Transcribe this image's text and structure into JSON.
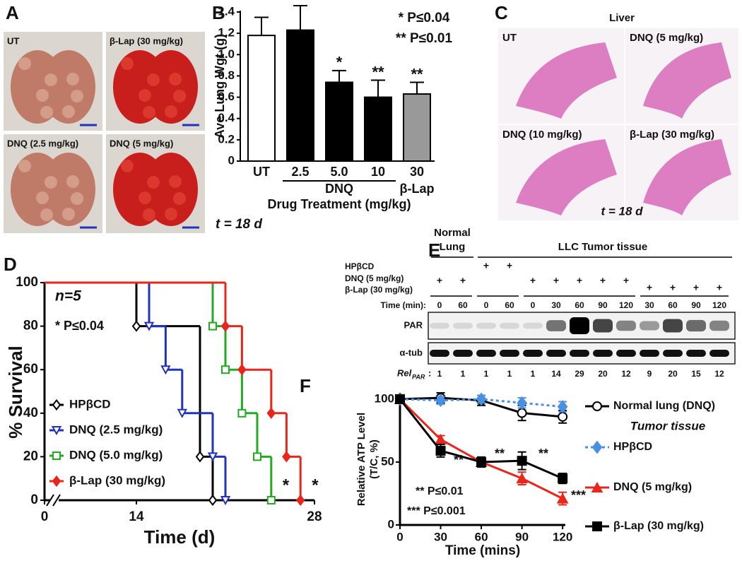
{
  "panel_labels": [
    "A",
    "B",
    "C",
    "D",
    "E",
    "F"
  ],
  "photos": {
    "labels": [
      "UT",
      "β-Lap (30 mg/kg)",
      "DNQ (2.5 mg/kg)",
      "DNQ (5 mg/kg)"
    ]
  },
  "histology": {
    "title": "Liver",
    "labels": [
      "UT",
      "DNQ (5 mg/kg)",
      "DNQ (10 mg/kg)",
      "β-Lap (30 mg/kg)"
    ],
    "note": "t = 18 d"
  },
  "chart_data": [
    {
      "type": "bar",
      "ylabel": "Ave Lung Wgt (g)",
      "xlabel": "Drug Treatment (mg/kg)",
      "categories": [
        "UT",
        "2.5",
        "5.0",
        "10",
        "30"
      ],
      "values": [
        1.18,
        1.23,
        0.74,
        0.6,
        0.63
      ],
      "errors": [
        0.17,
        0.23,
        0.11,
        0.16,
        0.11
      ],
      "colors": [
        "#ffffff",
        "#000000",
        "#000000",
        "#000000",
        "#999999"
      ],
      "stars": [
        null,
        null,
        "*",
        "**",
        "**"
      ],
      "groups": [
        {
          "name": "DNQ"
        },
        {
          "name": "β-Lap"
        }
      ],
      "ylim": [
        0,
        1.4
      ],
      "yticks": [
        0,
        0.2,
        0.4,
        0.6,
        0.8,
        {
          "value": 1,
          "label": "1.0"
        },
        1.2,
        1.4
      ],
      "annotations": [
        "* P≤0.04",
        "** P≤0.01",
        "t = 18 d"
      ]
    },
    {
      "type": "survival",
      "ylabel": "% Survival",
      "xlabel": "Time (d)",
      "xlim": [
        0,
        28
      ],
      "xticks": [
        0,
        14,
        28
      ],
      "axis_break": true,
      "ylim": [
        0,
        100
      ],
      "yticks": [
        0,
        20,
        40,
        60,
        80,
        100
      ],
      "legend": "lower left",
      "annotations": [
        "n=5",
        "* P≤0.04"
      ],
      "series": [
        {
          "name": "HPβCD",
          "color": "#000000",
          "marker": "diamond",
          "marker_open": true,
          "x": [
            0,
            14,
            19,
            20
          ],
          "values": [
            100,
            80,
            20,
            0
          ]
        },
        {
          "name": "DNQ (2.5 mg/kg)",
          "color": "#2233bb",
          "marker": "triangle-down",
          "marker_open": true,
          "x": [
            0,
            15,
            16.3,
            17.6,
            20,
            21
          ],
          "values": [
            100,
            80,
            60,
            40,
            20,
            0
          ]
        },
        {
          "name": "DNQ (5.0 mg/kg)",
          "color": "#22aa22",
          "marker": "square",
          "marker_open": true,
          "x": [
            0,
            20,
            21,
            22.3,
            23.5,
            24.6
          ],
          "values": [
            100,
            80,
            60,
            40,
            20,
            0
          ],
          "star": "*"
        },
        {
          "name": "β-Lap (30 mg/kg)",
          "color": "#e8261c",
          "marker": "diamond",
          "marker_open": false,
          "x": [
            0,
            21,
            22.3,
            24.6,
            25.8,
            26.9
          ],
          "values": [
            100,
            80,
            60,
            40,
            20,
            0
          ],
          "star": "*"
        }
      ]
    },
    {
      "type": "line",
      "ylabel": [
        "Relative ATP Level",
        "(T/C, %)"
      ],
      "xlabel": "Time (mins)",
      "x": [
        0,
        30,
        60,
        90,
        120
      ],
      "xlim": [
        0,
        122
      ],
      "xticks": [
        0,
        30,
        60,
        90,
        120
      ],
      "ylim": [
        0,
        105
      ],
      "yticks": [
        0,
        50,
        100
      ],
      "legend": "right",
      "legend_subtitle": "Tumor tissue",
      "stars": [
        null,
        "**",
        "**",
        "**",
        "***"
      ],
      "annotations": [
        "** P≤0.01",
        "*** P≤0.001"
      ],
      "series": [
        {
          "name": "Normal lung (DNQ)",
          "color": "#000000",
          "marker": "circle",
          "marker_open": true,
          "dashed": false,
          "values": [
            100,
            101,
            99,
            89,
            86
          ],
          "errors": [
            3,
            4,
            4,
            6,
            5
          ]
        },
        {
          "name": "HPβCD",
          "color": "#4a8fe0",
          "marker": "diamond",
          "marker_open": false,
          "dashed": true,
          "values": [
            100,
            99,
            100,
            97,
            94
          ],
          "errors": [
            2,
            3,
            3,
            4,
            4
          ]
        },
        {
          "name": "DNQ (5 mg/kg)",
          "color": "#e8261c",
          "marker": "triangle-up",
          "marker_open": false,
          "dashed": false,
          "values": [
            100,
            68,
            50,
            37,
            21
          ],
          "errors": [
            2,
            3,
            3,
            5,
            5
          ]
        },
        {
          "name": "β-Lap (30 mg/kg)",
          "color": "#000000",
          "marker": "square",
          "marker_open": false,
          "dashed": false,
          "values": [
            100,
            59,
            50,
            51,
            37
          ],
          "errors": [
            2,
            5,
            4,
            7,
            4
          ]
        }
      ]
    }
  ],
  "blot": {
    "header_normal": [
      "Normal",
      "Lung"
    ],
    "header_tumor": "LLC Tumor tissue",
    "rows": [
      {
        "label": "HPβCD",
        "marks": [
          null,
          null,
          "+",
          "+",
          null,
          null,
          null,
          null,
          null,
          null,
          null,
          null,
          null
        ]
      },
      {
        "label": "DNQ (5 mg/kg)",
        "marks": [
          "+",
          "+",
          null,
          null,
          "+",
          "+",
          "+",
          "+",
          "+",
          null,
          null,
          null,
          null
        ]
      },
      {
        "label": "β-Lap (30 mg/kg)",
        "marks": [
          null,
          null,
          null,
          null,
          null,
          null,
          null,
          null,
          null,
          "+",
          "+",
          "+",
          "+"
        ]
      }
    ],
    "time_label": "Time (min):",
    "times": [
      0,
      60,
      0,
      60,
      0,
      30,
      60,
      90,
      120,
      30,
      60,
      90,
      120
    ],
    "bands": [
      "PAR",
      "α-tub"
    ],
    "rel_label": "Rel",
    "rel_sub": "PAR",
    "rel_colon": ":",
    "rel_par": [
      1,
      1,
      1,
      1,
      1,
      14,
      29,
      20,
      12,
      9,
      20,
      15,
      12
    ]
  }
}
